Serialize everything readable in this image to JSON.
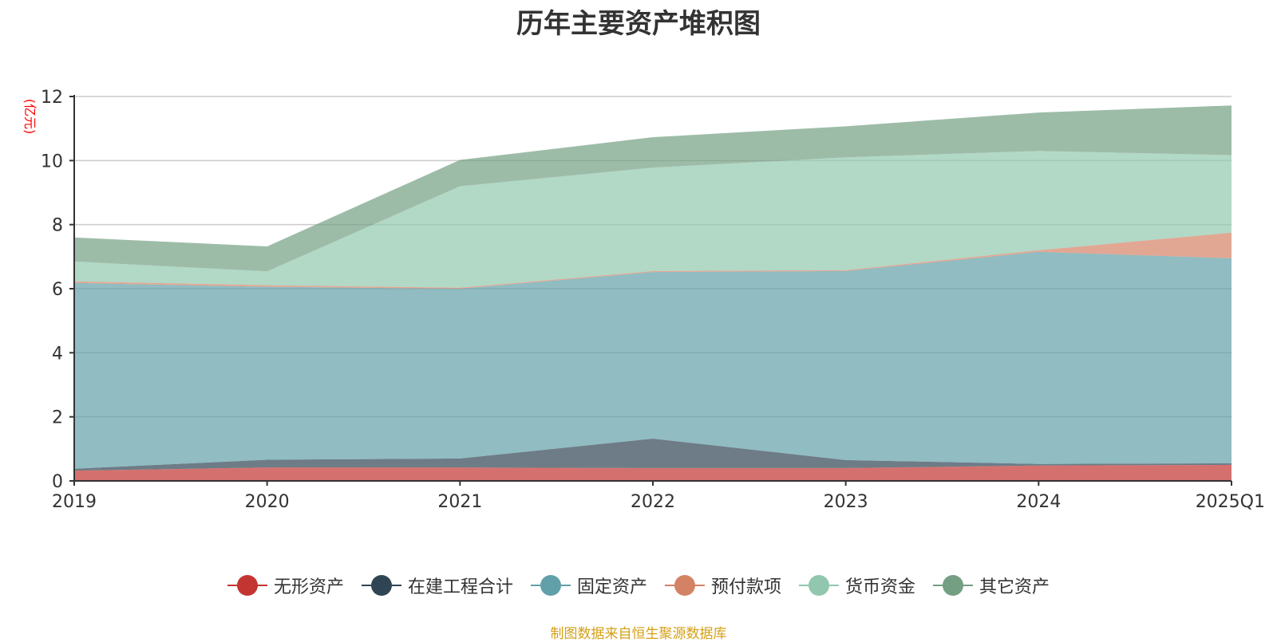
{
  "chart_data": {
    "type": "area",
    "stacked": true,
    "title": "历年主要资产堆积图",
    "ylabel": "(亿元)",
    "xlabel": "",
    "categories": [
      "2019",
      "2020",
      "2021",
      "2022",
      "2023",
      "2024",
      "2025Q1"
    ],
    "ylim": [
      0,
      12
    ],
    "yticks": [
      0,
      2,
      4,
      6,
      8,
      10,
      12
    ],
    "grid": true,
    "legend_position": "bottom",
    "series": [
      {
        "name": "无形资产",
        "color": "#c23531",
        "values": [
          0.32,
          0.42,
          0.42,
          0.4,
          0.4,
          0.48,
          0.5
        ]
      },
      {
        "name": "在建工程合计",
        "color": "#2f4554",
        "values": [
          0.06,
          0.24,
          0.28,
          0.92,
          0.25,
          0.05,
          0.05
        ]
      },
      {
        "name": "固定资产",
        "color": "#61a0a8",
        "values": [
          5.8,
          5.4,
          5.3,
          5.2,
          5.9,
          6.62,
          6.4
        ]
      },
      {
        "name": "预付款项",
        "color": "#d48265",
        "values": [
          0.05,
          0.05,
          0.03,
          0.03,
          0.03,
          0.05,
          0.8
        ]
      },
      {
        "name": "货币资金",
        "color": "#91c7ae",
        "values": [
          0.62,
          0.43,
          3.17,
          3.23,
          3.52,
          3.1,
          2.42
        ]
      },
      {
        "name": "其它资产",
        "color": "#749f83",
        "values": [
          0.75,
          0.78,
          0.82,
          0.95,
          0.97,
          1.2,
          1.55
        ]
      }
    ]
  },
  "source_note": "制图数据来自恒生聚源数据库"
}
